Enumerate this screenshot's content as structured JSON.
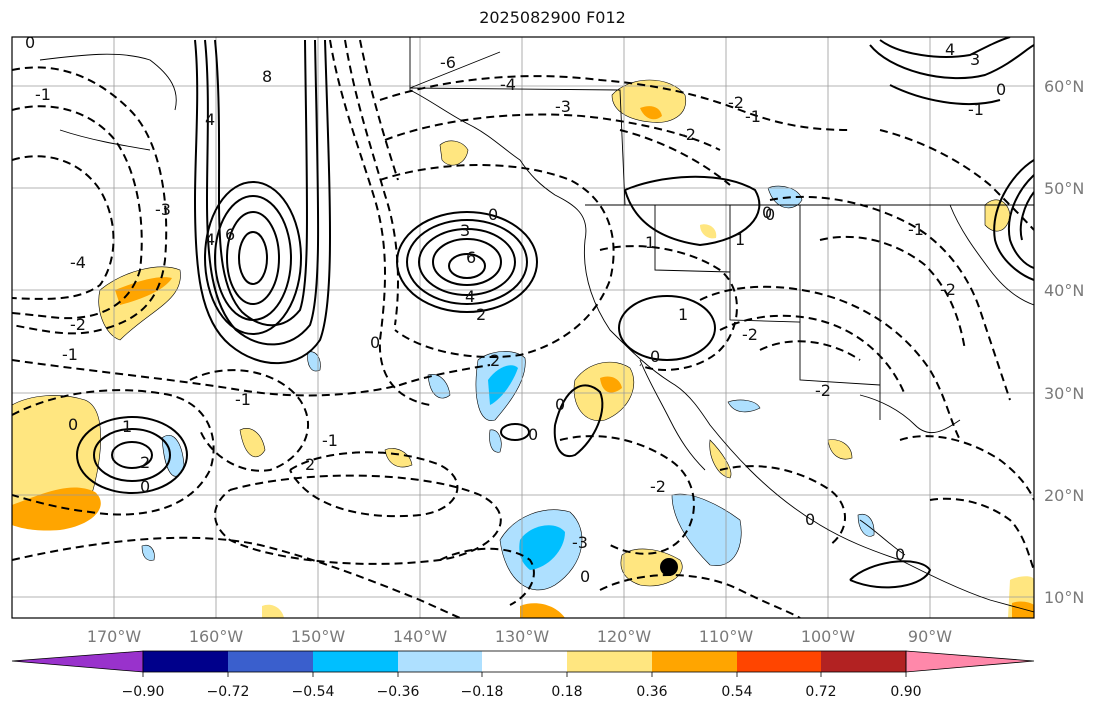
{
  "title": "2025082900 F012",
  "map": {
    "lon_labels": [
      "170°W",
      "160°W",
      "150°W",
      "140°W",
      "130°W",
      "120°W",
      "110°W",
      "100°W",
      "90°W"
    ],
    "lat_labels": [
      "60°N",
      "50°N",
      "40°N",
      "30°N",
      "20°N",
      "10°N"
    ],
    "contour_labels": [
      "-6",
      "-4",
      "-3",
      "-2",
      "-1",
      "0",
      "1",
      "2",
      "3",
      "4",
      "6",
      "8"
    ],
    "colors": {
      "border": "#000000",
      "grid": "#9a9a9a",
      "contour": "#000000"
    }
  },
  "colorbar": {
    "ticks": [
      "−0.90",
      "−0.72",
      "−0.54",
      "−0.36",
      "−0.18",
      "0.18",
      "0.36",
      "0.54",
      "0.72",
      "0.90"
    ],
    "colors": [
      "#9932cc",
      "#00008b",
      "#3a5fcd",
      "#00bfff",
      "#aee0ff",
      "#ffffff",
      "#ffe680",
      "#ffa500",
      "#ff4500",
      "#b22222",
      "#ff88aa"
    ]
  }
}
